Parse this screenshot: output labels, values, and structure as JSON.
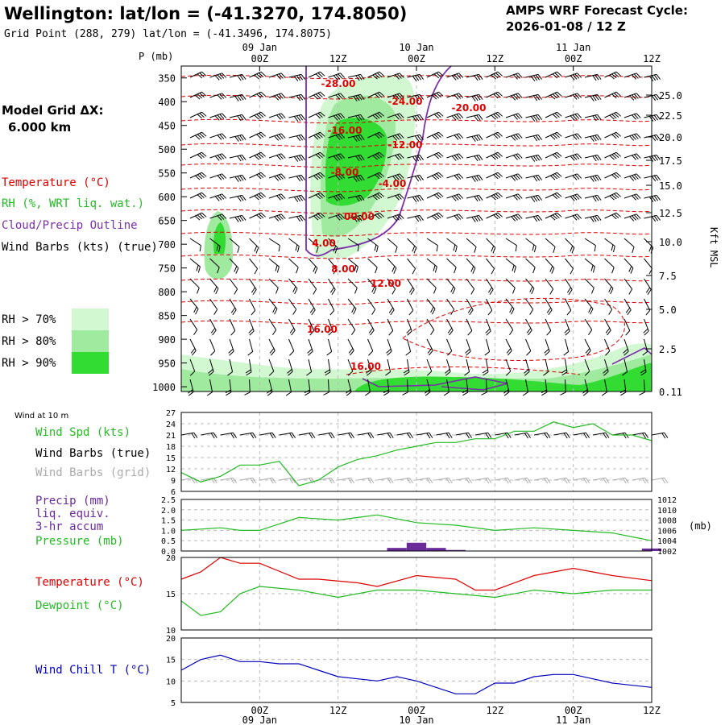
{
  "header": {
    "location": "Wellington:  lat/lon = (-41.3270, 174.8050)",
    "grid_point": "Grid Point (288, 279) lat/lon = (-41.3496, 174.8075)",
    "forecast_title": "AMPS WRF Forecast Cycle:",
    "forecast_cycle": "2026-01-08 / 12  Z"
  },
  "sidebar": {
    "model_grid_label": "Model Grid ΔX:",
    "model_grid_value": "6.000 km",
    "temperature_label": "Temperature (°C)",
    "rh_label": "RH (%, WRT liq. wat.)",
    "cloud_label": "Cloud/Precip Outline",
    "wind_label": "Wind Barbs (kts) (true)",
    "rh_legend": [
      "RH > 70%",
      "RH > 80%",
      "RH > 90%"
    ],
    "rh_colors": [
      "#d2f8d2",
      "#a0eaa0",
      "#32dc32"
    ]
  },
  "time_axis": {
    "ticks": [
      "00Z",
      "12Z",
      "00Z",
      "12Z",
      "00Z",
      "12Z"
    ],
    "day_labels": [
      "09 Jan",
      "10 Jan",
      "11 Jan"
    ]
  },
  "colors": {
    "temperature": "#dd0000",
    "rh": "#22bb22",
    "cloud": "#7b2fa8",
    "wind": "#000000",
    "grid_barbs": "#aaaaaa",
    "windchill": "#0000bb",
    "precip": "#6a2a9a"
  },
  "chart_data": [
    {
      "type": "heatmap",
      "name": "pressure-time cross section",
      "ylabel": "P (mb)",
      "y_ticks": [
        "350",
        "400",
        "450",
        "500",
        "550",
        "600",
        "650",
        "700",
        "750",
        "800",
        "850",
        "900",
        "950",
        "1000"
      ],
      "right_ylabel": "Kft MSL",
      "right_ticks": [
        "25.0",
        "22.5",
        "20.0",
        "17.5",
        "15.0",
        "12.5",
        "10.0",
        "7.5",
        "5.0",
        "2.5",
        "0.11"
      ],
      "temperature_contour_labels": [
        "-28.00",
        "-24.00",
        "-20.00",
        "-16.00",
        "-12.00",
        "-8.00",
        "-4.00",
        "00.00",
        "4.00",
        "8.00",
        "12.00",
        "16.00",
        "16.00"
      ]
    },
    {
      "type": "line",
      "title": "Wind at 10 m",
      "series_labels": [
        "Wind Spd (kts)",
        "Wind Barbs (true)",
        "Wind Barbs (grid)"
      ],
      "y_ticks": [
        "27",
        "24",
        "21",
        "18",
        "15",
        "12",
        "9",
        "6"
      ],
      "ylim": [
        6,
        27
      ],
      "x": [
        0,
        3,
        6,
        9,
        12,
        15,
        18,
        21,
        24,
        27,
        30,
        33,
        36,
        39,
        42,
        45,
        48,
        51,
        54,
        57,
        60,
        63,
        66,
        69,
        72
      ],
      "values": [
        11,
        8.5,
        10,
        13,
        13,
        14,
        7.5,
        9,
        12.5,
        14.5,
        15.5,
        17,
        18,
        19,
        19,
        20,
        20,
        22,
        22,
        24.5,
        23,
        24,
        21,
        21,
        19.5
      ]
    },
    {
      "type": "bar",
      "series_labels": [
        "Precip (mm)",
        "liq. equiv.",
        "3-hr accum",
        "Pressure (mb)"
      ],
      "left_ticks": [
        "2.5",
        "2.0",
        "1.5",
        "1.0",
        "0.5",
        "0.0"
      ],
      "right_ticks": [
        "1012",
        "1010",
        "1008",
        "1006",
        "1004",
        "1002"
      ],
      "right_unit": "(mb)",
      "ylim_precip": [
        0,
        2.5
      ],
      "ylim_pressure": [
        1002,
        1012
      ],
      "x": [
        0,
        3,
        6,
        9,
        12,
        15,
        18,
        21,
        24,
        27,
        30,
        33,
        36,
        39,
        42,
        45,
        48,
        51,
        54,
        57,
        60,
        63,
        66,
        69,
        72
      ],
      "pressure": [
        1006,
        1006.5,
        1006,
        1006,
        1008.5,
        1008,
        1008.5,
        1009,
        1007.5,
        1007,
        1006,
        1006.5,
        1006,
        1005.5,
        1004.5,
        1004
      ],
      "pressure_x": [
        0,
        6,
        9,
        12,
        18,
        24,
        27,
        30,
        36,
        42,
        48,
        54,
        60,
        66,
        70,
        72
      ],
      "precip": [
        0,
        0,
        0,
        0,
        0,
        0,
        0,
        0,
        0,
        0,
        0,
        0.15,
        0.4,
        0.15,
        0.05,
        0,
        0,
        0,
        0,
        0,
        0,
        0,
        0,
        0,
        0.12
      ]
    },
    {
      "type": "line",
      "series_labels": [
        "Temperature (°C)",
        "Dewpoint (°C)"
      ],
      "y_ticks": [
        "20",
        "15",
        "10"
      ],
      "ylim": [
        10,
        20
      ],
      "x": [
        0,
        3,
        6,
        9,
        12,
        15,
        18,
        21,
        24,
        27,
        30,
        33,
        36,
        39,
        42,
        45,
        48,
        51,
        54,
        57,
        60,
        63,
        66,
        69,
        72
      ],
      "temperature": [
        17,
        18,
        20,
        19.2,
        19.2,
        17,
        17,
        16.5,
        16,
        17.5,
        17,
        15.5,
        15.5,
        17.5,
        18,
        18.5,
        17.5,
        16.8
      ],
      "temperature_x": [
        0,
        3,
        6,
        9,
        12,
        18,
        21,
        27,
        30,
        36,
        42,
        45,
        48,
        54,
        57,
        60,
        66,
        72
      ],
      "dewpoint": [
        14,
        12,
        12.5,
        15,
        16,
        15.5,
        14.5,
        15.5,
        15.5,
        15,
        14.5,
        15.5,
        15,
        15.5,
        15.5
      ],
      "dewpoint_x": [
        0,
        3,
        6,
        9,
        12,
        18,
        24,
        30,
        36,
        42,
        48,
        54,
        60,
        66,
        72
      ]
    },
    {
      "type": "line",
      "series_labels": [
        "Wind Chill T (°C)"
      ],
      "y_ticks": [
        "20",
        "15",
        "10",
        "5"
      ],
      "ylim": [
        5,
        20
      ],
      "values": [
        12.5,
        15,
        16,
        14.5,
        14.5,
        14,
        14,
        12.5,
        11,
        10.5,
        10,
        11,
        10,
        8.5,
        7,
        7,
        9.5,
        9.5,
        11,
        11.5,
        11.5,
        10.5,
        9.5,
        8.5
      ],
      "x": [
        0,
        3,
        6,
        9,
        12,
        15,
        18,
        21,
        24,
        27,
        30,
        33,
        36,
        39,
        42,
        45,
        48,
        51,
        54,
        57,
        60,
        63,
        66,
        72
      ]
    }
  ]
}
